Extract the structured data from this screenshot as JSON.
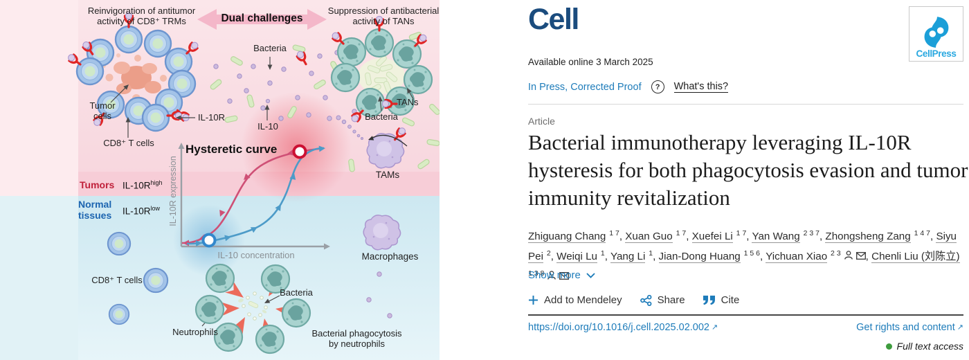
{
  "figure": {
    "top_left_label": {
      "line1": "Reinvigoration of antitumor",
      "line2": "activity of CD8⁺ TRMs"
    },
    "banner": "Dual challenges",
    "top_right_label": {
      "line1": "Suppression of antibacterial",
      "line2": "activity of TANs"
    },
    "labels": {
      "bacteria_top": "Bacteria",
      "tumor_line1": "Tumor",
      "tumor_line2": "cells",
      "il10r": "IL-10R",
      "cd8_top": "CD8⁺ T cells",
      "il10": "IL-10",
      "tans": "TANs",
      "bacteria_right": "Bacteria",
      "tams": "TAMs",
      "hysteretic": "Hysteretic curve",
      "tumors": "Tumors",
      "il10r_high_base": "IL-10R",
      "il10r_high_sup": "high",
      "normal_line1": "Normal",
      "normal_line2": "tissues",
      "il10r_low_base": "IL-10R",
      "il10r_low_sup": "low",
      "y_axis": "IL-10R expression",
      "x_axis": "IL-10 concentration",
      "macrophages": "Macrophages",
      "cd8_bottom": "CD8⁺ T cells",
      "neutrophils": "Neutrophils",
      "bacteria_bottom": "Bacteria",
      "phago_line1": "Bacterial phagocytosis",
      "phago_line2": "by neutrophils"
    },
    "colors": {
      "tumor_band": "#f6ccd6",
      "pink_strip": "#fdebee",
      "blue_strip": "#e1f2f6",
      "red_curve": "#cf5076",
      "blue_curve": "#4d9bc8",
      "banner_pink": "#f4b7c9"
    }
  },
  "article": {
    "journal": "Cell",
    "publisher": "CellPress",
    "available": "Available online 3 March 2025",
    "status": "In Press, Corrected Proof",
    "q_mark": "?",
    "whats_this": "What's this?",
    "type": "Article",
    "title": "Bacterial immunotherapy leveraging IL-10R hysteresis for both phagocytosis evasion and tumor immunity revitalization",
    "authors": [
      {
        "name": "Zhiguang Chang",
        "sup": "1 7",
        "icons": false
      },
      {
        "name": "Xuan Guo",
        "sup": "1 7",
        "icons": false
      },
      {
        "name": "Xuefei Li",
        "sup": "1 7",
        "icons": false
      },
      {
        "name": "Yan Wang",
        "sup": "2 3 7",
        "icons": false
      },
      {
        "name": "Zhongsheng Zang",
        "sup": "1 4 7",
        "icons": false
      },
      {
        "name": "Siyu Pei",
        "sup": "2",
        "icons": false
      },
      {
        "name": "Weiqi Lu",
        "sup": "1",
        "icons": false
      },
      {
        "name": "Yang Li",
        "sup": "1",
        "icons": false
      },
      {
        "name": "Jian-Dong Huang",
        "sup": "1 5 6",
        "icons": false
      },
      {
        "name": "Yichuan Xiao",
        "sup": "2 3",
        "icons": true
      },
      {
        "name": "Chenli Liu (刘陈立)",
        "sup": "1 3 8",
        "icons": true
      }
    ],
    "show_more": "Show more",
    "actions": {
      "mendeley": "Add to Mendeley",
      "share": "Share",
      "cite": "Cite"
    },
    "doi": "https://doi.org/10.1016/j.cell.2025.02.002",
    "rights": "Get rights and content",
    "access": "Full text access"
  }
}
